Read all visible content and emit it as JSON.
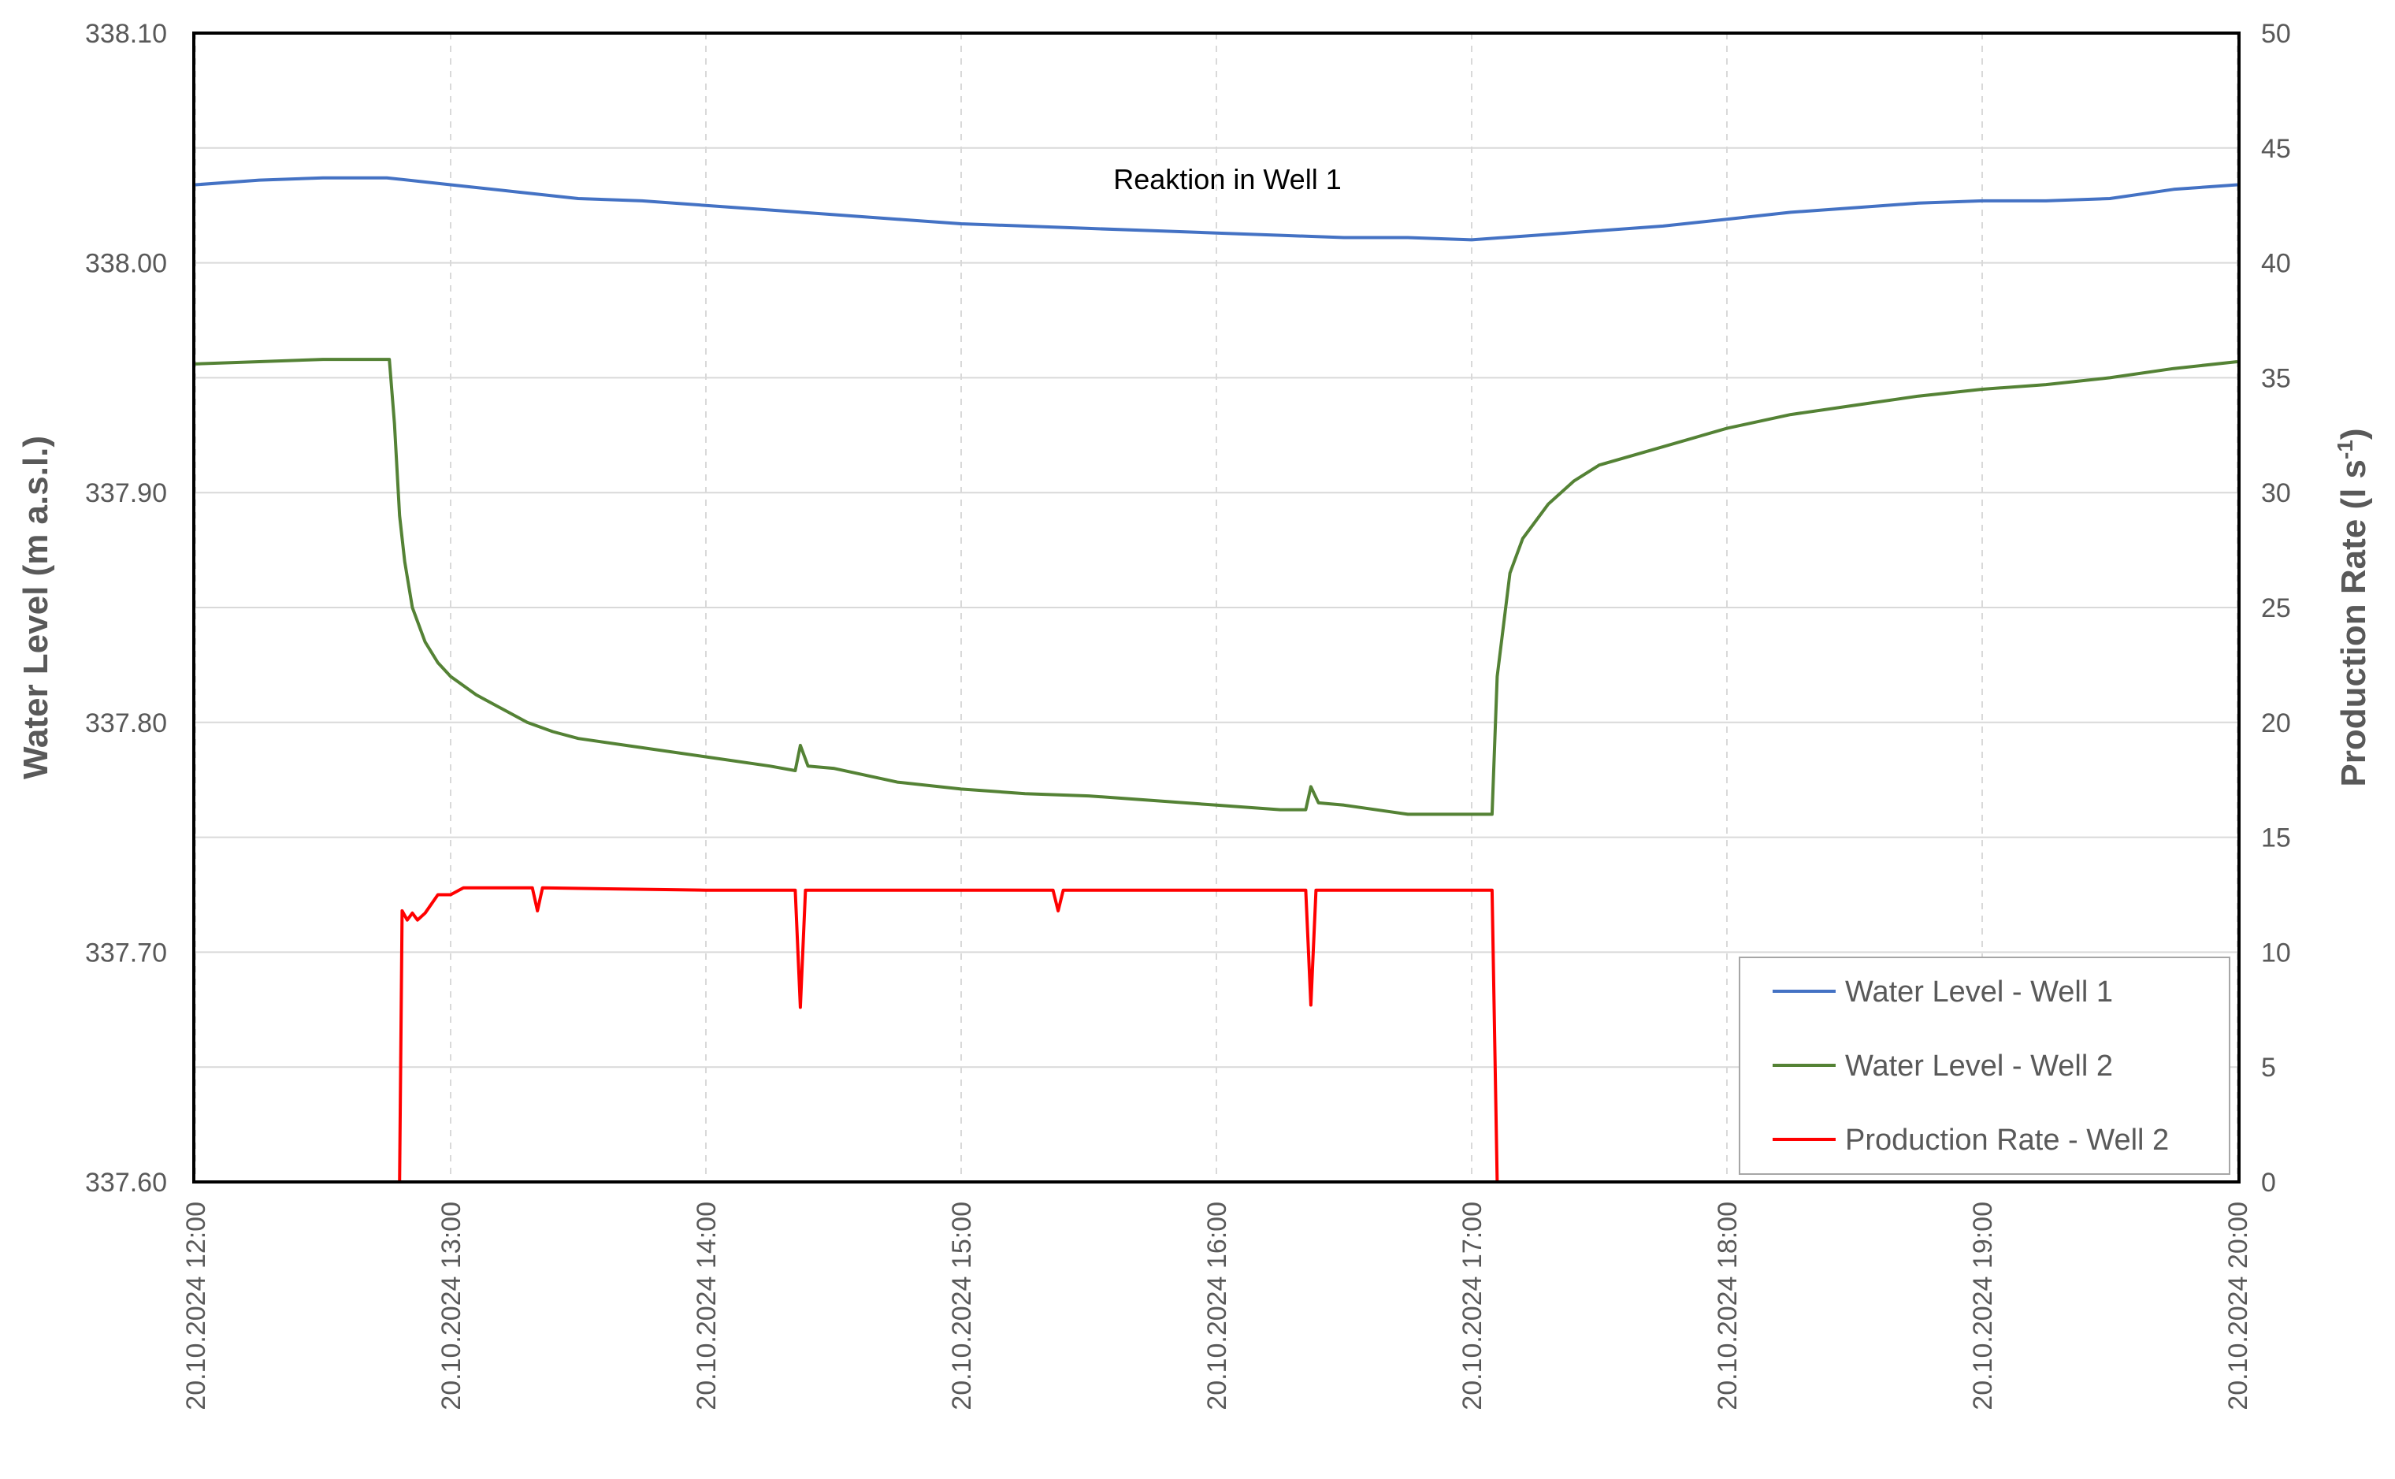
{
  "chart_data": {
    "type": "line",
    "annotation": "Reaktion in Well 1",
    "y_left": {
      "label": "Water Level (m a.s.l.)",
      "range": [
        337.6,
        338.1
      ],
      "ticks": [
        "337.60",
        "337.70",
        "337.80",
        "337.90",
        "338.00",
        "338.10"
      ]
    },
    "y_right": {
      "label_main": "Production Rate (l s",
      "label_sup": "-1",
      "label_end": ")",
      "range": [
        0,
        50
      ],
      "ticks": [
        "0",
        "5",
        "10",
        "15",
        "20",
        "25",
        "30",
        "35",
        "40",
        "45",
        "50"
      ]
    },
    "x_axis": {
      "range": [
        12,
        20
      ],
      "ticks": [
        "20.10.2024 12:00",
        "20.10.2024 13:00",
        "20.10.2024 14:00",
        "20.10.2024 15:00",
        "20.10.2024 16:00",
        "20.10.2024 17:00",
        "20.10.2024 18:00",
        "20.10.2024 19:00",
        "20.10.2024 20:00"
      ]
    },
    "grid": true,
    "legend_position": "bottom-right",
    "series": [
      {
        "name": "Water Level - Well 1",
        "axis": "left",
        "color": "#4472C4",
        "x": [
          12.0,
          12.25,
          12.5,
          12.75,
          13.0,
          13.25,
          13.5,
          13.75,
          14.0,
          14.25,
          14.5,
          14.75,
          15.0,
          15.25,
          15.5,
          15.75,
          16.0,
          16.25,
          16.5,
          16.75,
          17.0,
          17.25,
          17.5,
          17.75,
          18.0,
          18.25,
          18.5,
          18.75,
          19.0,
          19.25,
          19.5,
          19.75,
          20.0
        ],
        "y": [
          338.034,
          338.036,
          338.037,
          338.037,
          338.034,
          338.031,
          338.028,
          338.027,
          338.025,
          338.023,
          338.021,
          338.019,
          338.017,
          338.016,
          338.015,
          338.014,
          338.013,
          338.012,
          338.011,
          338.011,
          338.01,
          338.012,
          338.014,
          338.016,
          338.019,
          338.022,
          338.024,
          338.026,
          338.027,
          338.027,
          338.028,
          338.032,
          338.034
        ]
      },
      {
        "name": "Water Level - Well 2",
        "axis": "left",
        "color": "#548235",
        "x": [
          12.0,
          12.25,
          12.5,
          12.76,
          12.78,
          12.8,
          12.82,
          12.85,
          12.9,
          12.95,
          13.0,
          13.1,
          13.2,
          13.3,
          13.4,
          13.5,
          13.75,
          14.0,
          14.25,
          14.35,
          14.37,
          14.4,
          14.5,
          14.75,
          15.0,
          15.25,
          15.5,
          15.75,
          16.0,
          16.25,
          16.35,
          16.37,
          16.4,
          16.5,
          16.75,
          17.0,
          17.08,
          17.1,
          17.15,
          17.2,
          17.3,
          17.4,
          17.5,
          17.75,
          18.0,
          18.25,
          18.5,
          18.75,
          19.0,
          19.25,
          19.5,
          19.75,
          20.0
        ],
        "y": [
          337.956,
          337.957,
          337.958,
          337.958,
          337.93,
          337.89,
          337.87,
          337.85,
          337.835,
          337.826,
          337.82,
          337.812,
          337.806,
          337.8,
          337.796,
          337.793,
          337.789,
          337.785,
          337.781,
          337.779,
          337.79,
          337.781,
          337.78,
          337.774,
          337.771,
          337.769,
          337.768,
          337.766,
          337.764,
          337.762,
          337.762,
          337.772,
          337.765,
          337.764,
          337.76,
          337.76,
          337.76,
          337.82,
          337.865,
          337.88,
          337.895,
          337.905,
          337.912,
          337.92,
          337.928,
          337.934,
          337.938,
          337.942,
          337.945,
          337.947,
          337.95,
          337.954,
          337.957
        ]
      },
      {
        "name": "Production Rate - Well 2",
        "axis": "right",
        "color": "#FF0000",
        "x": [
          12.0,
          12.8,
          12.81,
          12.83,
          12.85,
          12.87,
          12.9,
          12.95,
          13.0,
          13.05,
          13.3,
          13.32,
          13.34,
          13.36,
          14.0,
          14.35,
          14.37,
          14.39,
          14.6,
          15.3,
          15.36,
          15.38,
          15.4,
          16.0,
          16.35,
          16.37,
          16.39,
          16.6,
          17.08,
          17.1,
          20.0
        ],
        "y": [
          0,
          0,
          11.8,
          11.4,
          11.7,
          11.4,
          11.7,
          12.5,
          12.5,
          12.8,
          12.8,
          12.8,
          11.8,
          12.8,
          12.7,
          12.7,
          7.6,
          12.7,
          12.7,
          12.7,
          12.7,
          11.8,
          12.7,
          12.7,
          12.7,
          7.7,
          12.7,
          12.7,
          12.7,
          0,
          0
        ]
      }
    ]
  }
}
